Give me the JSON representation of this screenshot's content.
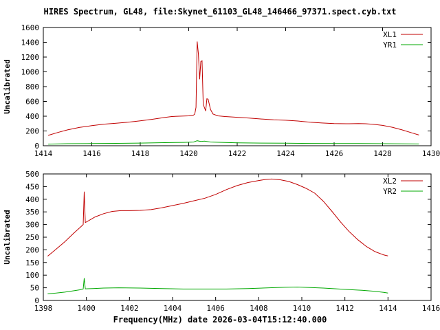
{
  "header": {
    "title": "HIRES Spectrum, GL48, file:Skynet_61103_GL48_146466_97371.spect.cyb.txt"
  },
  "footer": {
    "xlabel": "Frequency(MHz) date 2026-03-04T15:12:40.000"
  },
  "colors": {
    "axis": "#000000",
    "red": "#c00000",
    "green": "#00a800",
    "background": "#ffffff"
  },
  "chart_data": [
    {
      "type": "line",
      "panel": "top",
      "ylabel": "Uncalibrated",
      "xlim": [
        1414,
        1430
      ],
      "ylim": [
        0,
        1600
      ],
      "xtick": 2,
      "ytick": 200,
      "grid": false,
      "legend_position": "top-right",
      "series": [
        {
          "name": "XL1",
          "color": "#c00000",
          "points": [
            [
              1414.2,
              140
            ],
            [
              1414.6,
              180
            ],
            [
              1415.0,
              215
            ],
            [
              1415.5,
              248
            ],
            [
              1416.0,
              272
            ],
            [
              1416.5,
              292
            ],
            [
              1417.0,
              305
            ],
            [
              1417.5,
              318
            ],
            [
              1418.0,
              338
            ],
            [
              1418.5,
              358
            ],
            [
              1419.0,
              382
            ],
            [
              1419.3,
              395
            ],
            [
              1419.6,
              400
            ],
            [
              1420.0,
              405
            ],
            [
              1420.2,
              415
            ],
            [
              1420.25,
              430
            ],
            [
              1420.3,
              520
            ],
            [
              1420.35,
              1410
            ],
            [
              1420.4,
              1240
            ],
            [
              1420.45,
              900
            ],
            [
              1420.5,
              1140
            ],
            [
              1420.55,
              1150
            ],
            [
              1420.6,
              560
            ],
            [
              1420.7,
              470
            ],
            [
              1420.75,
              635
            ],
            [
              1420.8,
              630
            ],
            [
              1420.9,
              490
            ],
            [
              1421.0,
              430
            ],
            [
              1421.2,
              405
            ],
            [
              1421.5,
              395
            ],
            [
              1422.0,
              385
            ],
            [
              1422.5,
              375
            ],
            [
              1423.0,
              362
            ],
            [
              1423.5,
              352
            ],
            [
              1424.0,
              345
            ],
            [
              1424.5,
              335
            ],
            [
              1425.0,
              318
            ],
            [
              1425.5,
              308
            ],
            [
              1426.0,
              300
            ],
            [
              1426.5,
              298
            ],
            [
              1427.0,
              300
            ],
            [
              1427.3,
              298
            ],
            [
              1427.6,
              290
            ],
            [
              1428.0,
              275
            ],
            [
              1428.4,
              250
            ],
            [
              1428.8,
              215
            ],
            [
              1429.2,
              175
            ],
            [
              1429.5,
              145
            ]
          ]
        },
        {
          "name": "YR1",
          "color": "#00a800",
          "points": [
            [
              1414.2,
              22
            ],
            [
              1415.0,
              28
            ],
            [
              1416.0,
              30
            ],
            [
              1417.0,
              33
            ],
            [
              1418.0,
              36
            ],
            [
              1419.0,
              42
            ],
            [
              1419.8,
              46
            ],
            [
              1420.2,
              50
            ],
            [
              1420.35,
              68
            ],
            [
              1420.5,
              58
            ],
            [
              1420.65,
              62
            ],
            [
              1420.9,
              50
            ],
            [
              1421.5,
              44
            ],
            [
              1422.0,
              40
            ],
            [
              1423.0,
              36
            ],
            [
              1424.0,
              34
            ],
            [
              1425.0,
              32
            ],
            [
              1426.0,
              30
            ],
            [
              1427.0,
              30
            ],
            [
              1428.0,
              28
            ],
            [
              1429.0,
              26
            ],
            [
              1429.5,
              24
            ]
          ]
        }
      ]
    },
    {
      "type": "line",
      "panel": "bottom",
      "ylabel": "Uncalibrated",
      "xlim": [
        1398,
        1416
      ],
      "ylim": [
        0,
        500
      ],
      "xtick": 2,
      "ytick": 50,
      "grid": false,
      "legend_position": "top-right",
      "series": [
        {
          "name": "XL2",
          "color": "#c00000",
          "points": [
            [
              1398.2,
              175
            ],
            [
              1398.5,
              196
            ],
            [
              1399.0,
              232
            ],
            [
              1399.4,
              265
            ],
            [
              1399.7,
              288
            ],
            [
              1399.85,
              300
            ],
            [
              1399.9,
              430
            ],
            [
              1399.95,
              308
            ],
            [
              1400.1,
              315
            ],
            [
              1400.4,
              330
            ],
            [
              1400.8,
              343
            ],
            [
              1401.2,
              352
            ],
            [
              1401.6,
              355
            ],
            [
              1402.0,
              355
            ],
            [
              1402.5,
              356
            ],
            [
              1403.0,
              359
            ],
            [
              1403.5,
              366
            ],
            [
              1404.0,
              375
            ],
            [
              1404.5,
              384
            ],
            [
              1405.0,
              394
            ],
            [
              1405.5,
              404
            ],
            [
              1406.0,
              419
            ],
            [
              1406.5,
              438
            ],
            [
              1407.0,
              454
            ],
            [
              1407.5,
              466
            ],
            [
              1408.0,
              474
            ],
            [
              1408.3,
              478
            ],
            [
              1408.6,
              480
            ],
            [
              1409.0,
              477
            ],
            [
              1409.4,
              470
            ],
            [
              1409.8,
              458
            ],
            [
              1410.2,
              443
            ],
            [
              1410.6,
              424
            ],
            [
              1411.0,
              392
            ],
            [
              1411.4,
              352
            ],
            [
              1411.8,
              310
            ],
            [
              1412.2,
              272
            ],
            [
              1412.6,
              240
            ],
            [
              1413.0,
              213
            ],
            [
              1413.4,
              193
            ],
            [
              1413.8,
              180
            ],
            [
              1414.0,
              176
            ]
          ]
        },
        {
          "name": "YR2",
          "color": "#00a800",
          "points": [
            [
              1398.2,
              26
            ],
            [
              1398.6,
              29
            ],
            [
              1399.0,
              33
            ],
            [
              1399.4,
              38
            ],
            [
              1399.7,
              42
            ],
            [
              1399.85,
              45
            ],
            [
              1399.9,
              88
            ],
            [
              1399.95,
              46
            ],
            [
              1400.3,
              47
            ],
            [
              1400.8,
              49
            ],
            [
              1401.5,
              50
            ],
            [
              1402.5,
              49
            ],
            [
              1403.5,
              47
            ],
            [
              1404.5,
              45
            ],
            [
              1405.5,
              45
            ],
            [
              1406.5,
              45
            ],
            [
              1407.5,
              47
            ],
            [
              1408.5,
              50
            ],
            [
              1409.2,
              52
            ],
            [
              1409.8,
              53
            ],
            [
              1410.4,
              51
            ],
            [
              1411.0,
              49
            ],
            [
              1411.6,
              46
            ],
            [
              1412.2,
              43
            ],
            [
              1412.8,
              40
            ],
            [
              1413.4,
              36
            ],
            [
              1413.8,
              32
            ],
            [
              1414.0,
              29
            ]
          ]
        }
      ]
    }
  ]
}
